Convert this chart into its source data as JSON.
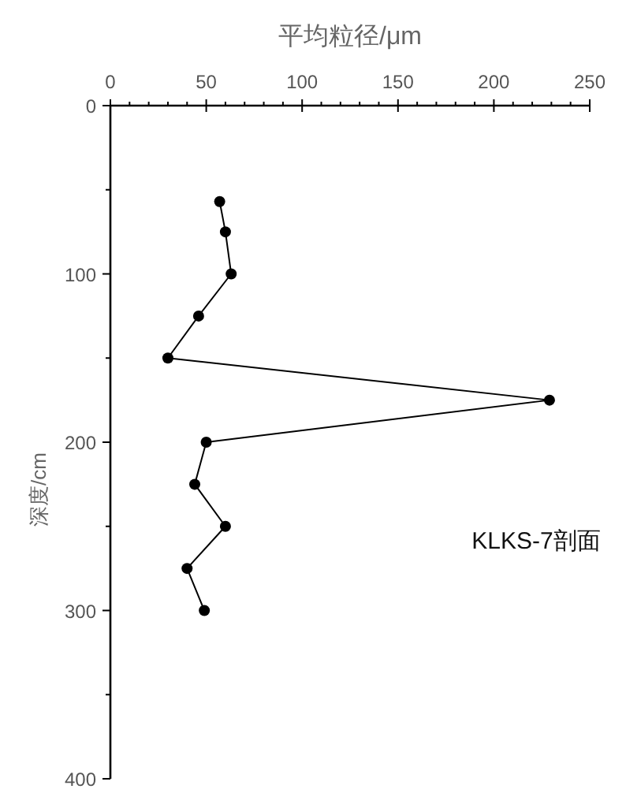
{
  "chart_data": {
    "type": "line",
    "xlabel": "平均粒径/μm",
    "ylabel": "深度/cm",
    "annotations": [
      "KLKS-7剖面"
    ],
    "series": [
      {
        "color": "#000000",
        "x": [
          57,
          60,
          63,
          46,
          30,
          229,
          50,
          44,
          60,
          40,
          49
        ],
        "values": [
          57,
          75,
          100,
          125,
          150,
          175,
          200,
          225,
          250,
          275,
          300
        ]
      }
    ],
    "xlim": [
      0,
      250
    ],
    "xticks": [
      0,
      {
        "value": 10,
        "label": null
      },
      {
        "value": 20,
        "label": null
      },
      {
        "value": 30,
        "label": null
      },
      {
        "value": 40,
        "label": null
      },
      50,
      {
        "value": 60,
        "label": null
      },
      {
        "value": 70,
        "label": null
      },
      {
        "value": 80,
        "label": null
      },
      {
        "value": 90,
        "label": null
      },
      100,
      {
        "value": 110,
        "label": null
      },
      {
        "value": 120,
        "label": null
      },
      {
        "value": 130,
        "label": null
      },
      {
        "value": 140,
        "label": null
      },
      150,
      {
        "value": 160,
        "label": null
      },
      {
        "value": 170,
        "label": null
      },
      {
        "value": 180,
        "label": null
      },
      {
        "value": 190,
        "label": null
      },
      200,
      {
        "value": 210,
        "label": null
      },
      {
        "value": 220,
        "label": null
      },
      {
        "value": 230,
        "label": null
      },
      {
        "value": 240,
        "label": null
      },
      250
    ],
    "ylim": [
      400,
      0
    ],
    "yticks": [
      0,
      {
        "value": 50,
        "label": null
      },
      100,
      {
        "value": 150,
        "label": null
      },
      200,
      {
        "value": 250,
        "label": null
      },
      300,
      {
        "value": 350,
        "label": null
      },
      400
    ],
    "marker": "circle",
    "line_style": "solid",
    "grid": false
  }
}
